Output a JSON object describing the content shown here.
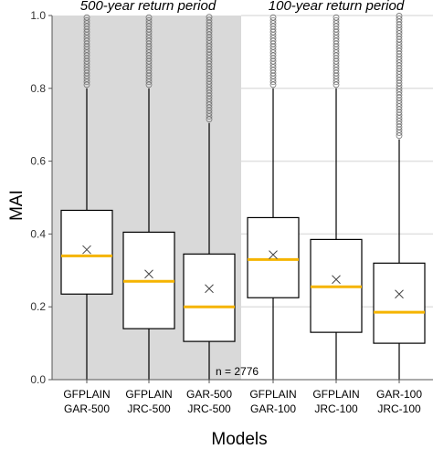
{
  "chart_data": {
    "type": "box",
    "xlabel": "Models",
    "ylabel": "MAI",
    "ylim": [
      0,
      1.0
    ],
    "yticks": [
      0.0,
      0.2,
      0.4,
      0.6,
      0.8,
      1.0
    ],
    "grid": true,
    "panels": [
      {
        "title": "500-year return period",
        "shaded": true
      },
      {
        "title": "100-year return period",
        "shaded": false
      }
    ],
    "annotation": "n = 2776",
    "categories": [
      {
        "line1": "GFPLAIN",
        "line2": "GAR-500"
      },
      {
        "line1": "GFPLAIN",
        "line2": "JRC-500"
      },
      {
        "line1": "GAR-500",
        "line2": "JRC-500"
      },
      {
        "line1": "GFPLAIN",
        "line2": "GAR-100"
      },
      {
        "line1": "GFPLAIN",
        "line2": "JRC-100"
      },
      {
        "line1": "GAR-100",
        "line2": "JRC-100"
      }
    ],
    "boxes": [
      {
        "whisker_low": 0.0,
        "q1": 0.235,
        "median": 0.34,
        "q3": 0.465,
        "whisker_high": 0.8,
        "mean": 0.357,
        "outliers_from": 0.8,
        "outliers_to": 1.0
      },
      {
        "whisker_low": 0.0,
        "q1": 0.14,
        "median": 0.27,
        "q3": 0.405,
        "whisker_high": 0.8,
        "mean": 0.29,
        "outliers_from": 0.8,
        "outliers_to": 1.0
      },
      {
        "whisker_low": 0.0,
        "q1": 0.105,
        "median": 0.2,
        "q3": 0.345,
        "whisker_high": 0.705,
        "mean": 0.25,
        "outliers_from": 0.705,
        "outliers_to": 1.0
      },
      {
        "whisker_low": 0.0,
        "q1": 0.225,
        "median": 0.33,
        "q3": 0.445,
        "whisker_high": 0.8,
        "mean": 0.343,
        "outliers_from": 0.8,
        "outliers_to": 1.0
      },
      {
        "whisker_low": 0.0,
        "q1": 0.13,
        "median": 0.255,
        "q3": 0.385,
        "whisker_high": 0.8,
        "mean": 0.275,
        "outliers_from": 0.8,
        "outliers_to": 1.0
      },
      {
        "whisker_low": 0.0,
        "q1": 0.1,
        "median": 0.185,
        "q3": 0.32,
        "whisker_high": 0.66,
        "mean": 0.235,
        "outliers_from": 0.66,
        "outliers_to": 1.0
      }
    ],
    "colors": {
      "panel_shade": "#d9d9d9",
      "grid": "#e0e0e0",
      "box_stroke": "#000000",
      "median": "#f5b400",
      "outlier": "#777777",
      "mean_marker": "#444444"
    }
  }
}
